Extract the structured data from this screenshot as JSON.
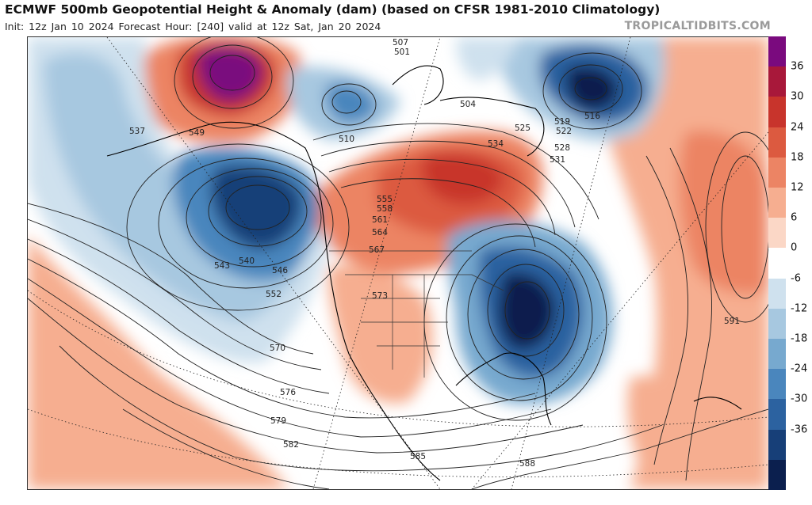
{
  "header": {
    "title": "ECMWF 500mb Geopotential Height & Anomaly (dam) (based on CFSR 1981-2010 Climatology)",
    "subtitle": "Init: 12z Jan 10 2024   Forecast Hour: [240]   valid at 12z Sat, Jan 20 2024",
    "brand": "TROPICALTIDBITS.COM"
  },
  "colorbar": {
    "ticks": [
      "36",
      "30",
      "24",
      "18",
      "12",
      "6",
      "0",
      "-6",
      "-12",
      "-18",
      "-24",
      "-30",
      "-36"
    ],
    "colors": [
      "#7a0a7e",
      "#a8183a",
      "#c8342c",
      "#dc5a40",
      "#ec8464",
      "#f6ae90",
      "#fbd7c6",
      "#ffffff",
      "#cfe1ee",
      "#a7c8e0",
      "#77a9cf",
      "#4a86bd",
      "#2c62a0",
      "#173f78",
      "#0b1f4e"
    ]
  },
  "height_labels": [
    "507",
    "501",
    "504",
    "510",
    "516",
    "519",
    "522",
    "525",
    "528",
    "531",
    "534",
    "537",
    "540",
    "543",
    "546",
    "549",
    "552",
    "555",
    "558",
    "561",
    "564",
    "567",
    "570",
    "573",
    "576",
    "579",
    "582",
    "585",
    "588",
    "591"
  ],
  "map_label_texts": {
    "l507": "507",
    "l501": "501",
    "l504": "504",
    "l510": "510",
    "l516": "516",
    "l519": "519",
    "l522": "522",
    "l525": "525",
    "l528": "528",
    "l531": "531",
    "l534": "534",
    "l537": "537",
    "l540": "540",
    "l543": "543",
    "l546": "546",
    "l549": "549",
    "l552": "552",
    "l555": "555",
    "l558": "558",
    "l561": "561",
    "l564": "564",
    "l567": "567",
    "l570": "570",
    "l573": "573",
    "l576": "576",
    "l579": "579",
    "l582": "582",
    "l585": "585",
    "l588": "588",
    "l591": "591"
  }
}
